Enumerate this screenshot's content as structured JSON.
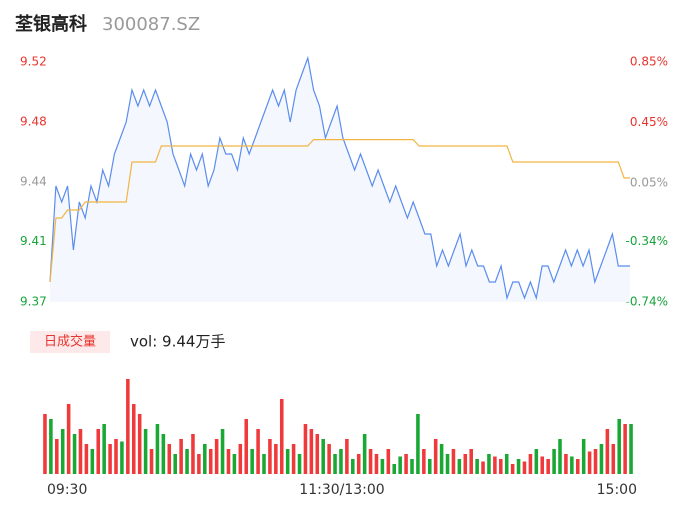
{
  "header": {
    "title": "荃银高科",
    "code": "300087.SZ"
  },
  "chart_data": [
    {
      "type": "line",
      "ylim": [
        9.3675,
        9.5175
      ],
      "yticks": [
        {
          "value": 9.5175,
          "label": "9.52"
        },
        {
          "value": 9.48,
          "label": "9.48"
        },
        {
          "value": 9.4425,
          "label": "9.44"
        },
        {
          "value": 9.4052,
          "label": "9.41"
        },
        {
          "value": 9.3675,
          "label": "9.37"
        }
      ],
      "y2lim": [
        -0.74,
        0.85
      ],
      "y2ticks": [
        {
          "value": 0.85,
          "label": "0.85%"
        },
        {
          "value": 0.45,
          "label": "0.45%"
        },
        {
          "value": 0.05,
          "label": "0.05%"
        },
        {
          "value": -0.34,
          "label": "-0.34%"
        },
        {
          "value": -0.74,
          "label": "-0.74%"
        }
      ],
      "tick_colors": [
        "#e8342f",
        "#e8342f",
        "#999999",
        "#17a33a",
        "#17a33a"
      ],
      "fill": "#f4f7fd",
      "series": [
        {
          "color": "#5b8def",
          "values": [
            9.38,
            9.44,
            9.43,
            9.44,
            9.4,
            9.43,
            9.42,
            9.44,
            9.43,
            9.45,
            9.44,
            9.46,
            9.47,
            9.48,
            9.5,
            9.49,
            9.5,
            9.49,
            9.5,
            9.49,
            9.48,
            9.46,
            9.45,
            9.44,
            9.46,
            9.45,
            9.46,
            9.44,
            9.45,
            9.47,
            9.46,
            9.46,
            9.45,
            9.47,
            9.46,
            9.47,
            9.48,
            9.49,
            9.5,
            9.49,
            9.5,
            9.48,
            9.5,
            9.51,
            9.52,
            9.5,
            9.49,
            9.47,
            9.48,
            9.49,
            9.47,
            9.46,
            9.45,
            9.46,
            9.45,
            9.44,
            9.45,
            9.44,
            9.43,
            9.44,
            9.43,
            9.42,
            9.43,
            9.42,
            9.41,
            9.41,
            9.39,
            9.4,
            9.39,
            9.4,
            9.41,
            9.39,
            9.4,
            9.39,
            9.39,
            9.38,
            9.38,
            9.39,
            9.37,
            9.38,
            9.38,
            9.37,
            9.38,
            9.37,
            9.39,
            9.39,
            9.38,
            9.39,
            9.4,
            9.39,
            9.4,
            9.39,
            9.4,
            9.38,
            9.39,
            9.4,
            9.41,
            9.39,
            9.39,
            9.39
          ]
        },
        {
          "color": "#f2b544",
          "values": [
            9.38,
            9.42,
            9.42,
            9.425,
            9.425,
            9.425,
            9.43,
            9.43,
            9.43,
            9.43,
            9.43,
            9.43,
            9.43,
            9.43,
            9.455,
            9.455,
            9.455,
            9.455,
            9.455,
            9.465,
            9.465,
            9.465,
            9.465,
            9.465,
            9.465,
            9.465,
            9.465,
            9.465,
            9.465,
            9.465,
            9.465,
            9.465,
            9.465,
            9.465,
            9.465,
            9.465,
            9.465,
            9.465,
            9.465,
            9.465,
            9.465,
            9.465,
            9.465,
            9.465,
            9.465,
            9.469,
            9.469,
            9.469,
            9.469,
            9.469,
            9.469,
            9.469,
            9.469,
            9.469,
            9.469,
            9.469,
            9.469,
            9.469,
            9.469,
            9.469,
            9.469,
            9.469,
            9.469,
            9.465,
            9.465,
            9.465,
            9.465,
            9.465,
            9.465,
            9.465,
            9.465,
            9.465,
            9.465,
            9.465,
            9.465,
            9.465,
            9.465,
            9.465,
            9.465,
            9.455,
            9.455,
            9.455,
            9.455,
            9.455,
            9.455,
            9.455,
            9.455,
            9.455,
            9.455,
            9.455,
            9.455,
            9.455,
            9.455,
            9.455,
            9.455,
            9.455,
            9.455,
            9.455,
            9.445,
            9.445
          ]
        }
      ]
    },
    {
      "type": "bar",
      "tag": "日成交量",
      "summary": "vol: 9.44万手",
      "up_color": "#f0393b",
      "down_color": "#1aa834",
      "values": [
        1200,
        1100,
        700,
        900,
        1400,
        800,
        900,
        600,
        500,
        900,
        1000,
        600,
        700,
        650,
        1900,
        1400,
        1200,
        900,
        500,
        1000,
        800,
        600,
        400,
        700,
        500,
        800,
        400,
        600,
        500,
        700,
        900,
        500,
        400,
        600,
        1100,
        500,
        900,
        400,
        700,
        600,
        1500,
        500,
        600,
        400,
        1000,
        900,
        800,
        700,
        600,
        400,
        500,
        700,
        300,
        400,
        800,
        500,
        400,
        300,
        500,
        200,
        350,
        400,
        300,
        1200,
        500,
        300,
        700,
        600,
        400,
        500,
        300,
        400,
        500,
        300,
        250,
        400,
        350,
        300,
        400,
        200,
        300,
        250,
        400,
        500,
        350,
        300,
        500,
        700,
        400,
        350,
        300,
        700,
        450,
        500,
        600,
        900,
        600,
        1100,
        1000,
        1000
      ],
      "up": [
        1,
        0,
        1,
        0,
        1,
        0,
        1,
        1,
        0,
        1,
        0,
        1,
        1,
        0,
        1,
        1,
        1,
        0,
        1,
        0,
        0,
        1,
        0,
        1,
        0,
        1,
        1,
        0,
        1,
        1,
        0,
        1,
        0,
        1,
        1,
        0,
        1,
        0,
        1,
        1,
        1,
        0,
        1,
        0,
        1,
        1,
        1,
        0,
        1,
        0,
        0,
        1,
        0,
        1,
        0,
        1,
        1,
        0,
        1,
        0,
        0,
        1,
        0,
        0,
        1,
        0,
        1,
        0,
        0,
        1,
        0,
        1,
        1,
        0,
        1,
        0,
        1,
        1,
        0,
        1,
        0,
        1,
        1,
        0,
        1,
        1,
        0,
        0,
        1,
        0,
        1,
        0,
        1,
        1,
        0,
        1,
        1,
        0,
        1,
        0
      ],
      "xlim": [
        0,
        240
      ],
      "xticks": [
        {
          "value": 0,
          "label": "09:30"
        },
        {
          "value": 120,
          "label": "11:30/13:00"
        },
        {
          "value": 240,
          "label": "15:00"
        }
      ]
    }
  ]
}
